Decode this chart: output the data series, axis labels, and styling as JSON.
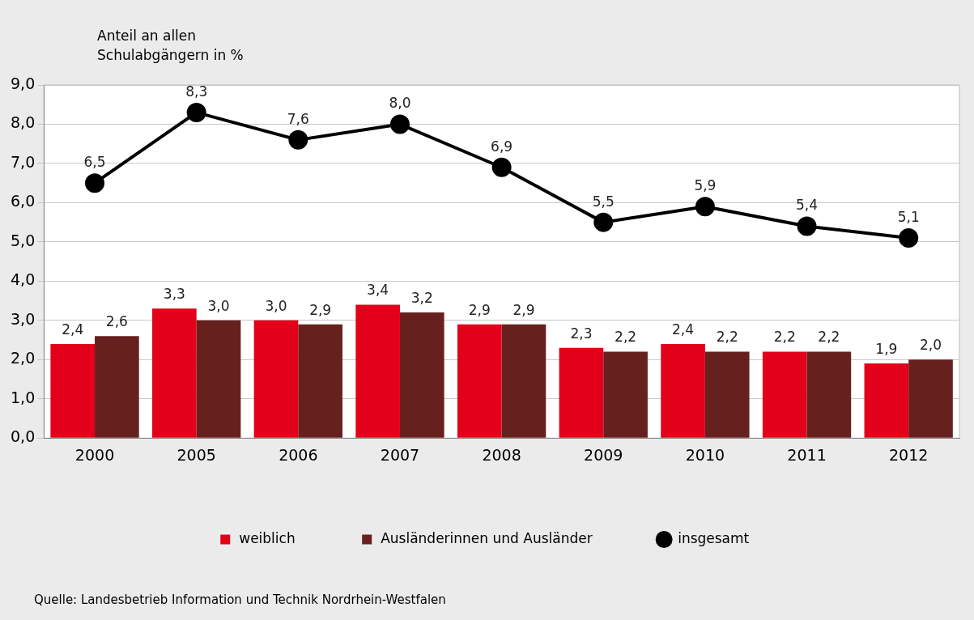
{
  "chart_data": {
    "type": "bar",
    "ylabel": "Anteil an allen Schulabgängern in %",
    "categories": [
      "2000",
      "2005",
      "2006",
      "2007",
      "2008",
      "2009",
      "2010",
      "2011",
      "2012"
    ],
    "series": [
      {
        "name": "weiblich",
        "color": "#e2001a",
        "values": [
          2.4,
          3.3,
          3.0,
          3.4,
          2.9,
          2.3,
          2.4,
          2.2,
          1.9
        ],
        "value_labels": [
          "2,4",
          "3,3",
          "3,0",
          "3,4",
          "2,9",
          "2,3",
          "2,4",
          "2,2",
          "1,9"
        ]
      },
      {
        "name": "Ausländerinnen und Ausländer",
        "color": "#66211f",
        "values": [
          2.6,
          3.0,
          2.9,
          3.2,
          2.9,
          2.2,
          2.2,
          2.2,
          2.0
        ],
        "value_labels": [
          "2,6",
          "3,0",
          "2,9",
          "3,2",
          "2,9",
          "2,2",
          "2,2",
          "2,2",
          "2,0"
        ]
      },
      {
        "name": "insgesamt",
        "type": "line",
        "color": "#000000",
        "values": [
          6.5,
          8.3,
          7.6,
          8.0,
          6.9,
          5.5,
          5.9,
          5.4,
          5.1
        ],
        "value_labels": [
          "6,5",
          "8,3",
          "7,6",
          "8,0",
          "6,9",
          "5,5",
          "5,9",
          "5,4",
          "5,1"
        ]
      }
    ],
    "ylim": [
      0,
      9
    ],
    "yticks": [
      {
        "value": 0,
        "label": "0,0"
      },
      {
        "value": 1,
        "label": "1,0"
      },
      {
        "value": 2,
        "label": "2,0"
      },
      {
        "value": 3,
        "label": "3,0"
      },
      {
        "value": 4,
        "label": "4,0"
      },
      {
        "value": 5,
        "label": "5,0"
      },
      {
        "value": 6,
        "label": "6,0"
      },
      {
        "value": 7,
        "label": "7,0"
      },
      {
        "value": 8,
        "label": "8,0"
      },
      {
        "value": 9,
        "label": "9,0"
      }
    ],
    "grid": "y",
    "legend": "bottom",
    "marker": "circle",
    "annotations": [
      "Quelle: Landesbetrieb Information und Technik Nordrhein-Westfalen"
    ]
  }
}
